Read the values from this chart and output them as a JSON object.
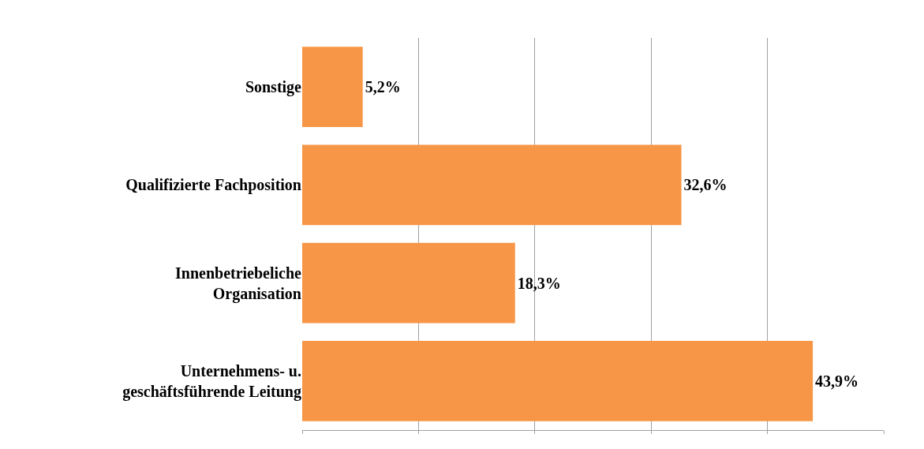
{
  "chart_data": {
    "type": "bar",
    "orientation": "horizontal",
    "categories": [
      "Sonstige",
      "Qualifizierte Fachposition",
      "Innenbetriebeliche\nOrganisation",
      "Unternehmens- u.\ngeschäftsführende Leitung"
    ],
    "values": [
      5.2,
      32.6,
      18.3,
      43.9
    ],
    "color": "#f79646",
    "value_labels": [
      "5,2%",
      "32,6%",
      "18,3%",
      "43,9%"
    ],
    "xlim": [
      0,
      50
    ],
    "xticks": [
      {
        "value": 0,
        "label": null
      },
      {
        "value": 10,
        "label": null
      },
      {
        "value": 20,
        "label": null
      },
      {
        "value": 30,
        "label": null
      },
      {
        "value": 40,
        "label": null
      },
      {
        "value": 50,
        "label": null
      }
    ],
    "grid": "x",
    "tick_labels": "y"
  }
}
